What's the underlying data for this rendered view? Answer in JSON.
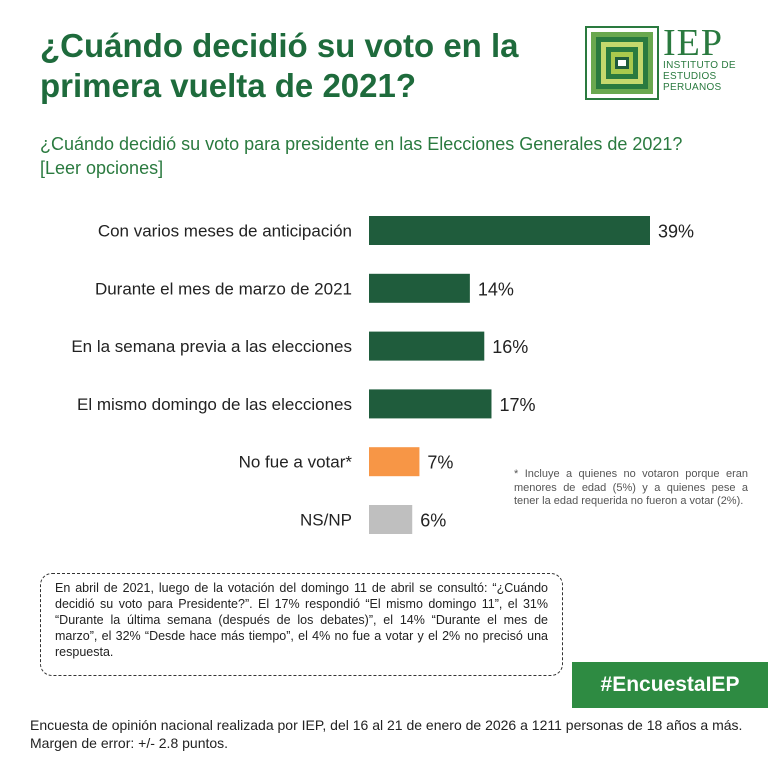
{
  "header": {
    "title": "¿Cuándo decidió su voto en la primera vuelta de 2021?",
    "logo_acronym": "IEP",
    "logo_line1": "INSTITUTO DE",
    "logo_line2": "ESTUDIOS",
    "logo_line3": "PERUANOS"
  },
  "question": "¿Cuándo decidió su voto para presidente en las Elecciones Generales de 2021? [Leer opciones]",
  "chart_data": {
    "type": "bar",
    "orientation": "horizontal",
    "categories": [
      "Con varios meses de anticipación",
      "Durante el mes de marzo de 2021",
      "En la semana previa a las elecciones",
      "El mismo domingo de las elecciones",
      "No fue a votar*",
      "NS/NP"
    ],
    "values": [
      39,
      14,
      16,
      17,
      7,
      6
    ],
    "value_labels": [
      "39%",
      "14%",
      "16%",
      "17%",
      "7%",
      "6%"
    ],
    "colors": [
      "#1f5c3c",
      "#1f5c3c",
      "#1f5c3c",
      "#1f5c3c",
      "#f79646",
      "#bfbfbf"
    ],
    "xlim": [
      0,
      39
    ],
    "grid": false,
    "legend": "none"
  },
  "note": "* Incluye a quienes no votaron porque eran menores de edad (5%) y a quienes pese a tener la edad requerida no fueron a votar (2%).",
  "context_box": "En abril de 2021, luego de la votación del domingo 11 de abril se consultó: “¿Cuándo decidió su voto para Presidente?”. El 17% respondió “El mismo domingo 11”, el 31% “Durante la última semana (después de los debates)”, el 14% “Durante el mes de marzo”, el 32% “Desde hace más tiempo”, el 4% no fue a votar y el 2% no precisó una respuesta.",
  "hashtag": "#EncuestaIEP",
  "footer": "Encuesta de opinión nacional realizada por IEP, del 16 al 21 de enero de 2026 a 1211 personas de 18 años a más. Margen de error: +/- 2.8 puntos.",
  "colors": {
    "brand_green": "#2e8b42",
    "title_green": "#1e6b3c",
    "bar_green": "#1f5c3c",
    "bar_orange": "#f79646",
    "bar_gray": "#bfbfbf"
  }
}
